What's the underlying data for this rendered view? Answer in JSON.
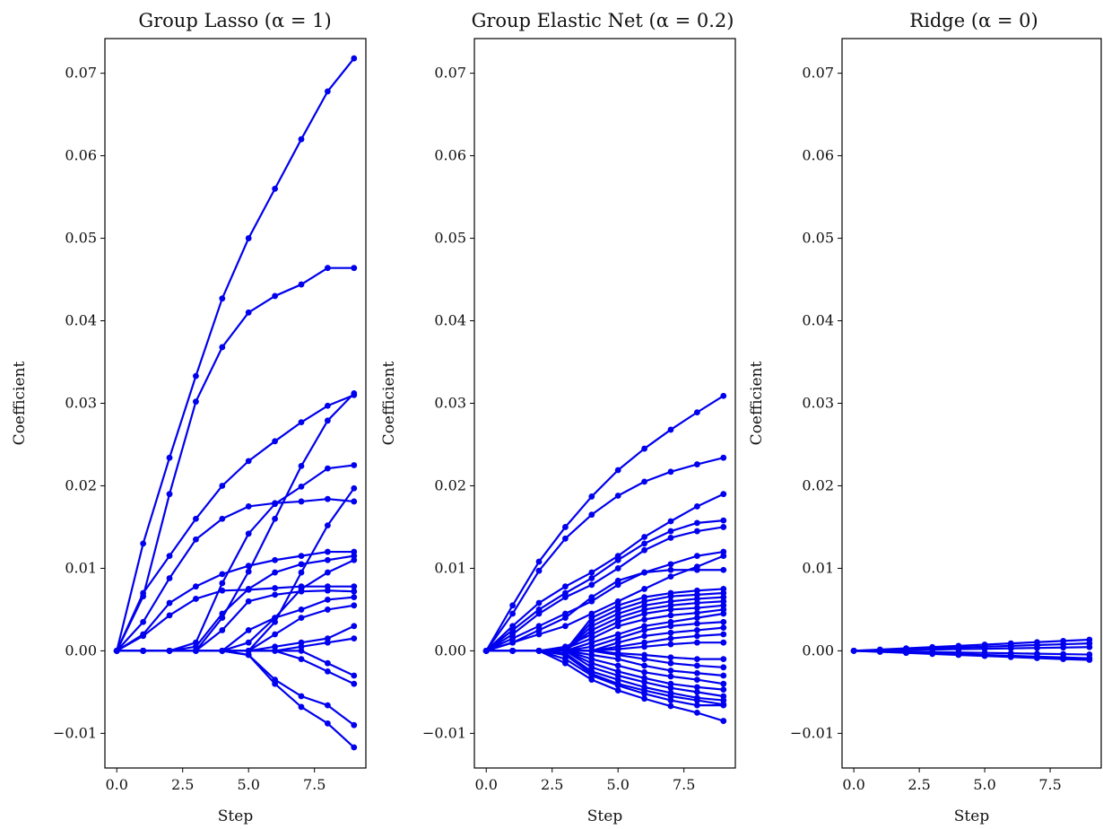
{
  "figure": {
    "chart_data": [
      {
        "type": "line",
        "title": "Group Lasso (α = 1)",
        "xlabel": "Step",
        "ylabel": "Coefficient",
        "xlim": [
          -0.45,
          9.45
        ],
        "ylim": [
          -0.0142,
          0.0742
        ],
        "x_ticks": [
          0,
          2.5,
          5,
          7.5
        ],
        "x_tick_labels": [
          "0.0",
          "2.5",
          "5.0",
          "7.5"
        ],
        "y_ticks": [
          -0.01,
          0,
          0.01,
          0.02,
          0.03,
          0.04,
          0.05,
          0.06,
          0.07
        ],
        "y_tick_labels": [
          "−0.01",
          "0.00",
          "0.01",
          "0.02",
          "0.03",
          "0.04",
          "0.05",
          "0.06",
          "0.07"
        ],
        "color": "#0000ee",
        "x": [
          0,
          1,
          2,
          3,
          4,
          5,
          6,
          7,
          8,
          9
        ],
        "series": [
          {
            "values": [
              0,
              0.013,
              0.0234,
              0.0333,
              0.0427,
              0.05,
              0.056,
              0.062,
              0.0678,
              0.0718
            ]
          },
          {
            "values": [
              0,
              0.0066,
              0.019,
              0.0302,
              0.0368,
              0.041,
              0.043,
              0.0444,
              0.0464,
              0.0464
            ]
          },
          {
            "values": [
              0,
              0.007,
              0.0115,
              0.016,
              0.02,
              0.023,
              0.0254,
              0.0277,
              0.0297,
              0.031
            ]
          },
          {
            "values": [
              0,
              0,
              0,
              0,
              0.004,
              0.0096,
              0.016,
              0.0224,
              0.0279,
              0.0312
            ]
          },
          {
            "values": [
              0,
              0.0035,
              0.0088,
              0.0135,
              0.016,
              0.0175,
              0.0179,
              0.0181,
              0.0184,
              0.0181
            ]
          },
          {
            "values": [
              0,
              0,
              0,
              0.001,
              0.0082,
              0.0142,
              0.0178,
              0.0199,
              0.0221,
              0.0225
            ]
          },
          {
            "values": [
              0,
              0,
              0,
              0,
              0,
              0,
              0.0035,
              0.0095,
              0.0152,
              0.0197
            ]
          },
          {
            "values": [
              0,
              0.002,
              0.0058,
              0.0078,
              0.0093,
              0.0103,
              0.011,
              0.0115,
              0.012,
              0.012
            ]
          },
          {
            "values": [
              0,
              0.0018,
              0.0043,
              0.0063,
              0.0073,
              0.0074,
              0.0076,
              0.0078,
              0.0078,
              0.0078
            ]
          },
          {
            "values": [
              0,
              0,
              0,
              0.0005,
              0.0045,
              0.0075,
              0.0095,
              0.0105,
              0.011,
              0.0115
            ]
          },
          {
            "values": [
              0,
              0,
              0,
              0,
              0.0025,
              0.006,
              0.0068,
              0.0072,
              0.0073,
              0.0072
            ]
          },
          {
            "values": [
              0,
              0,
              0,
              0,
              0,
              0.001,
              0.004,
              0.0075,
              0.0095,
              0.011
            ]
          },
          {
            "values": [
              0,
              0,
              0,
              0,
              0,
              0.0025,
              0.004,
              0.005,
              0.0062,
              0.0065
            ]
          },
          {
            "values": [
              0,
              0,
              0,
              0,
              0,
              0,
              0.002,
              0.004,
              0.005,
              0.0055
            ]
          },
          {
            "values": [
              0,
              0,
              0,
              0,
              0,
              0,
              0.0005,
              0.001,
              0.0015,
              0.003
            ]
          },
          {
            "values": [
              0,
              0,
              0,
              0,
              0,
              0,
              0,
              0.0005,
              0.001,
              0.0015
            ]
          },
          {
            "values": [
              0,
              0,
              0,
              0,
              0,
              0,
              0,
              0,
              -0.0015,
              -0.003
            ]
          },
          {
            "values": [
              0,
              0,
              0,
              0,
              0,
              0,
              0,
              -0.001,
              -0.0025,
              -0.004
            ]
          },
          {
            "values": [
              0,
              0,
              0,
              0,
              0,
              -0.0005,
              -0.0035,
              -0.0055,
              -0.0066,
              -0.009
            ]
          },
          {
            "values": [
              0,
              0,
              0,
              0,
              0,
              -0.0005,
              -0.004,
              -0.0068,
              -0.0088,
              -0.0117
            ]
          }
        ]
      },
      {
        "type": "line",
        "title": "Group Elastic Net (α = 0.2)",
        "xlabel": "Step",
        "ylabel": "Coefficient",
        "xlim": [
          -0.45,
          9.45
        ],
        "ylim": [
          -0.0142,
          0.0742
        ],
        "x_ticks": [
          0,
          2.5,
          5,
          7.5
        ],
        "x_tick_labels": [
          "0.0",
          "2.5",
          "5.0",
          "7.5"
        ],
        "y_ticks": [
          -0.01,
          0,
          0.01,
          0.02,
          0.03,
          0.04,
          0.05,
          0.06,
          0.07
        ],
        "y_tick_labels": [
          "−0.01",
          "0.00",
          "0.01",
          "0.02",
          "0.03",
          "0.04",
          "0.05",
          "0.06",
          "0.07"
        ],
        "color": "#0000ee",
        "x": [
          0,
          1,
          2,
          3,
          4,
          5,
          6,
          7,
          8,
          9
        ],
        "series": [
          {
            "values": [
              0,
              0.0055,
              0.0108,
              0.015,
              0.0187,
              0.0219,
              0.0245,
              0.0268,
              0.0289,
              0.0309
            ]
          },
          {
            "values": [
              0,
              0.0045,
              0.0097,
              0.0136,
              0.0165,
              0.0188,
              0.0205,
              0.0217,
              0.0226,
              0.0234
            ]
          },
          {
            "values": [
              0,
              0.003,
              0.0058,
              0.0078,
              0.0095,
              0.0115,
              0.0138,
              0.0157,
              0.0175,
              0.019
            ]
          },
          {
            "values": [
              0,
              0.0025,
              0.005,
              0.007,
              0.0088,
              0.011,
              0.013,
              0.0145,
              0.0155,
              0.0158
            ]
          },
          {
            "values": [
              0,
              0.002,
              0.0045,
              0.0065,
              0.008,
              0.01,
              0.0122,
              0.0137,
              0.0145,
              0.015
            ]
          },
          {
            "values": [
              0,
              0.0015,
              0.003,
              0.0045,
              0.006,
              0.008,
              0.0095,
              0.0105,
              0.0115,
              0.012
            ]
          },
          {
            "values": [
              0,
              0.001,
              0.0025,
              0.004,
              0.0065,
              0.0085,
              0.0095,
              0.0098,
              0.0098,
              0.0098
            ]
          },
          {
            "values": [
              0,
              0.001,
              0.002,
              0.003,
              0.0045,
              0.006,
              0.0075,
              0.009,
              0.0102,
              0.0115
            ]
          },
          {
            "values": [
              0,
              0,
              0,
              0,
              0.004,
              0.0055,
              0.0065,
              0.007,
              0.0073,
              0.0075
            ]
          },
          {
            "values": [
              0,
              0,
              0,
              0,
              0.0035,
              0.005,
              0.006,
              0.0066,
              0.0068,
              0.007
            ]
          },
          {
            "values": [
              0,
              0,
              0,
              0,
              0.003,
              0.0045,
              0.0055,
              0.006,
              0.0063,
              0.0065
            ]
          },
          {
            "values": [
              0,
              0,
              0,
              0,
              0.0025,
              0.004,
              0.005,
              0.0055,
              0.0058,
              0.006
            ]
          },
          {
            "values": [
              0,
              0,
              0,
              0.0005,
              0.002,
              0.0035,
              0.0045,
              0.005,
              0.0052,
              0.0055
            ]
          },
          {
            "values": [
              0,
              0,
              0,
              0.0003,
              0.0015,
              0.003,
              0.0038,
              0.0043,
              0.0046,
              0.005
            ]
          },
          {
            "values": [
              0,
              0,
              0,
              0,
              0.001,
              0.002,
              0.003,
              0.0035,
              0.004,
              0.0045
            ]
          },
          {
            "values": [
              0,
              0,
              0,
              0,
              0.0005,
              0.0015,
              0.0025,
              0.003,
              0.0033,
              0.0035
            ]
          },
          {
            "values": [
              0,
              0,
              0,
              0,
              0,
              0.001,
              0.0018,
              0.0022,
              0.0025,
              0.0028
            ]
          },
          {
            "values": [
              0,
              0,
              0,
              0,
              0,
              0.0005,
              0.001,
              0.0015,
              0.0018,
              0.002
            ]
          },
          {
            "values": [
              0,
              0,
              0,
              0,
              0,
              0.0002,
              0.0005,
              0.0008,
              0.001,
              0.001
            ]
          },
          {
            "values": [
              0,
              0,
              0,
              0,
              0,
              -0.0003,
              -0.0005,
              -0.0008,
              -0.001,
              -0.001
            ]
          },
          {
            "values": [
              0,
              0,
              0,
              0,
              0,
              -0.0005,
              -0.001,
              -0.0015,
              -0.0018,
              -0.002
            ]
          },
          {
            "values": [
              0,
              0,
              0,
              0,
              -0.0005,
              -0.001,
              -0.0018,
              -0.0024,
              -0.0027,
              -0.003
            ]
          },
          {
            "values": [
              0,
              0,
              0,
              0,
              -0.001,
              -0.0018,
              -0.0026,
              -0.0031,
              -0.0035,
              -0.004
            ]
          },
          {
            "values": [
              0,
              0,
              0,
              0,
              -0.0015,
              -0.0025,
              -0.0033,
              -0.004,
              -0.0044,
              -0.0047
            ]
          },
          {
            "values": [
              0,
              0,
              0,
              0,
              -0.002,
              -0.003,
              -0.0038,
              -0.0045,
              -0.005,
              -0.0055
            ]
          },
          {
            "values": [
              0,
              0,
              0,
              -0.0003,
              -0.0025,
              -0.0035,
              -0.0044,
              -0.0051,
              -0.0057,
              -0.006
            ]
          },
          {
            "values": [
              0,
              0,
              0,
              -0.0005,
              -0.0028,
              -0.004,
              -0.0048,
              -0.0055,
              -0.006,
              -0.0065
            ]
          },
          {
            "values": [
              0,
              0,
              0,
              -0.001,
              -0.003,
              -0.0042,
              -0.0052,
              -0.006,
              -0.0066,
              -0.0066
            ]
          },
          {
            "values": [
              0,
              0,
              0,
              -0.0015,
              -0.0035,
              -0.0048,
              -0.0058,
              -0.0067,
              -0.0075,
              -0.0085
            ]
          }
        ]
      },
      {
        "type": "line",
        "title": "Ridge (α = 0)",
        "xlabel": "Step",
        "ylabel": "Coefficient",
        "xlim": [
          -0.45,
          9.45
        ],
        "ylim": [
          -0.0142,
          0.0742
        ],
        "x_ticks": [
          0,
          2.5,
          5,
          7.5
        ],
        "x_tick_labels": [
          "0.0",
          "2.5",
          "5.0",
          "7.5"
        ],
        "y_ticks": [
          -0.01,
          0,
          0.01,
          0.02,
          0.03,
          0.04,
          0.05,
          0.06,
          0.07
        ],
        "y_tick_labels": [
          "−0.01",
          "0.00",
          "0.01",
          "0.02",
          "0.03",
          "0.04",
          "0.05",
          "0.06",
          "0.07"
        ],
        "color": "#0000ee",
        "x": [
          0,
          1,
          2,
          3,
          4,
          5,
          6,
          7,
          8,
          9
        ],
        "series": [
          {
            "values": [
              0,
              0.00015,
              0.0003,
              0.00045,
              0.0006,
              0.00075,
              0.0009,
              0.00105,
              0.0012,
              0.00135
            ]
          },
          {
            "values": [
              0,
              0.0001,
              0.0002,
              0.0003,
              0.0004,
              0.0005,
              0.0006,
              0.0007,
              0.0008,
              0.0009
            ]
          },
          {
            "values": [
              0,
              5e-05,
              0.0001,
              0.00015,
              0.0002,
              0.00025,
              0.0003,
              0.00035,
              0.0004,
              0.00045
            ]
          },
          {
            "values": [
              0,
              -5e-05,
              -0.0001,
              -0.00015,
              -0.0002,
              -0.00025,
              -0.0003,
              -0.00035,
              -0.0004,
              -0.00045
            ]
          },
          {
            "values": [
              0,
              -0.0001,
              -0.0002,
              -0.0003,
              -0.0004,
              -0.0005,
              -0.0006,
              -0.0007,
              -0.0008,
              -0.0009
            ]
          },
          {
            "values": [
              0,
              -0.00012,
              -0.00025,
              -0.00038,
              -0.0005,
              -0.00062,
              -0.00075,
              -0.00088,
              -0.001,
              -0.0011
            ]
          }
        ]
      }
    ]
  }
}
